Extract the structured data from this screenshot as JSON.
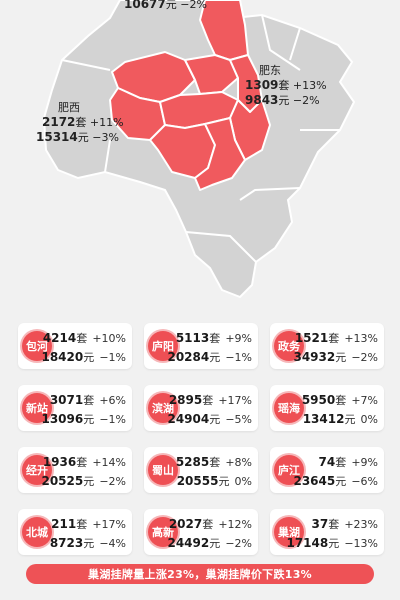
{
  "map": {
    "labels": {
      "top": {
        "count": "10677",
        "change": "−2%"
      },
      "feidong": {
        "name": "肥东",
        "count": "1309",
        "count_unit": "套",
        "count_change": "+13%",
        "price": "9843",
        "price_unit": "元",
        "price_change": "−2%"
      },
      "feixi": {
        "name": "肥西",
        "count": "2172",
        "count_unit": "套",
        "count_change": "+11%",
        "price": "15314",
        "price_unit": "元",
        "price_change": "−3%"
      }
    },
    "colors": {
      "highlight": "#f05a5e",
      "base": "#d3d3d3",
      "border": "#ffffff"
    }
  },
  "districts": [
    {
      "name": "包河",
      "count": "4214",
      "count_change": "+10%",
      "price": "18420",
      "price_change": "−1%"
    },
    {
      "name": "庐阳",
      "count": "5113",
      "count_change": "+9%",
      "price": "20284",
      "price_change": "−1%"
    },
    {
      "name": "政务",
      "count": "1521",
      "count_change": "+13%",
      "price": "34932",
      "price_change": "−2%"
    },
    {
      "name": "新站",
      "count": "3071",
      "count_change": "+6%",
      "price": "13096",
      "price_change": "−1%"
    },
    {
      "name": "滨湖",
      "count": "2895",
      "count_change": "+17%",
      "price": "24904",
      "price_change": "−5%"
    },
    {
      "name": "瑶海",
      "count": "5950",
      "count_change": "+7%",
      "price": "13412",
      "price_change": "0%"
    },
    {
      "name": "经开",
      "count": "1936",
      "count_change": "+14%",
      "price": "20525",
      "price_change": "−2%"
    },
    {
      "name": "蜀山",
      "count": "5285",
      "count_change": "+8%",
      "price": "20555",
      "price_change": "0%"
    },
    {
      "name": "庐江",
      "count": "74",
      "count_change": "+9%",
      "price": "23645",
      "price_change": "−6%"
    },
    {
      "name": "北城",
      "count": "211",
      "count_change": "+17%",
      "price": "8723",
      "price_change": "−4%"
    },
    {
      "name": "高新",
      "count": "2027",
      "count_change": "+12%",
      "price": "24492",
      "price_change": "−2%"
    },
    {
      "name": "巢湖",
      "count": "37",
      "count_change": "+23%",
      "price": "17148",
      "price_change": "−13%"
    }
  ],
  "units": {
    "count": "套",
    "price": "元"
  },
  "banner": {
    "text": "巢湖挂牌量上涨23%，巢湖挂牌价下跌13%"
  },
  "colors": {
    "accent": "#ee4f54",
    "background": "#f1f1f1",
    "card": "#ffffff"
  }
}
